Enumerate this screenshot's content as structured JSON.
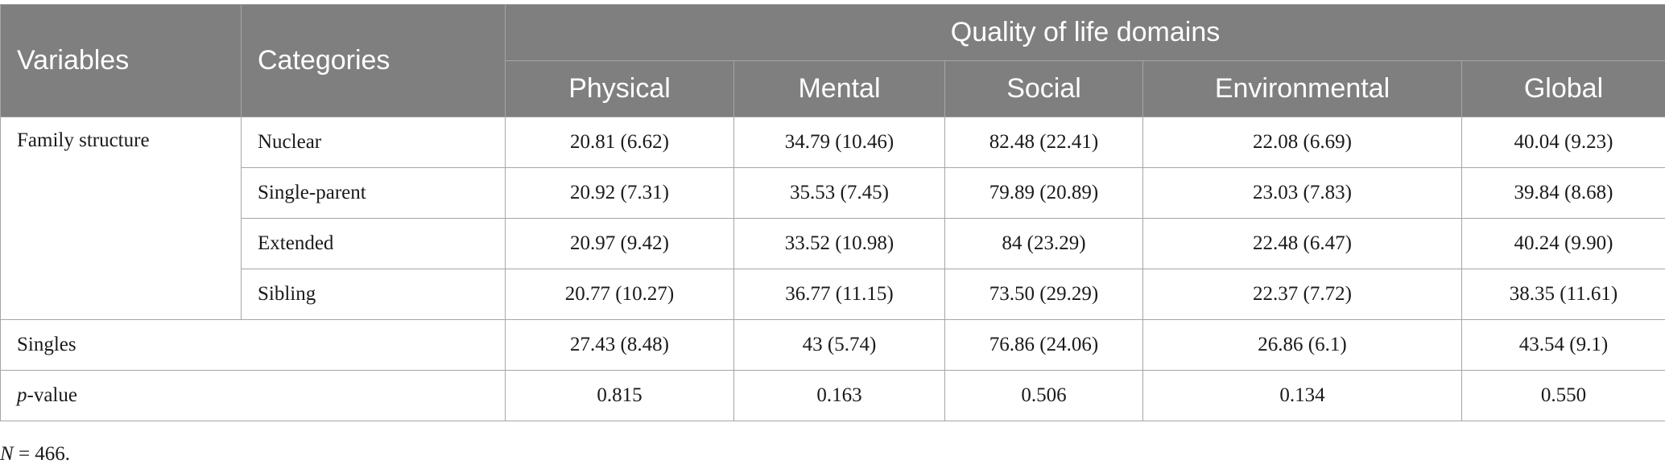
{
  "header": {
    "variables": "Variables",
    "categories": "Categories",
    "group": "Quality of life domains",
    "domains": [
      "Physical",
      "Mental",
      "Social",
      "Environmental",
      "Global"
    ]
  },
  "family_structure": {
    "label": "Family structure",
    "rows": [
      {
        "category": "Nuclear",
        "values": [
          "20.81 (6.62)",
          "34.79 (10.46)",
          "82.48 (22.41)",
          "22.08 (6.69)",
          "40.04 (9.23)"
        ]
      },
      {
        "category": "Single-parent",
        "values": [
          "20.92 (7.31)",
          "35.53 (7.45)",
          "79.89 (20.89)",
          "23.03 (7.83)",
          "39.84 (8.68)"
        ]
      },
      {
        "category": "Extended",
        "values": [
          "20.97 (9.42)",
          "33.52 (10.98)",
          "84 (23.29)",
          "22.48 (6.47)",
          "40.24 (9.90)"
        ]
      },
      {
        "category": "Sibling",
        "values": [
          "20.77 (10.27)",
          "36.77 (11.15)",
          "73.50 (29.29)",
          "22.37 (7.72)",
          "38.35 (11.61)"
        ]
      }
    ]
  },
  "singles": {
    "label": "Singles",
    "values": [
      "27.43 (8.48)",
      "43 (5.74)",
      "76.86 (24.06)",
      "26.86 (6.1)",
      "43.54 (9.1)"
    ]
  },
  "pvalue": {
    "label_italic": "p",
    "label_rest": "-value",
    "values": [
      "0.815",
      "0.163",
      "0.506",
      "0.134",
      "0.550"
    ]
  },
  "note": {
    "italic": "N",
    "rest": " = 466."
  }
}
